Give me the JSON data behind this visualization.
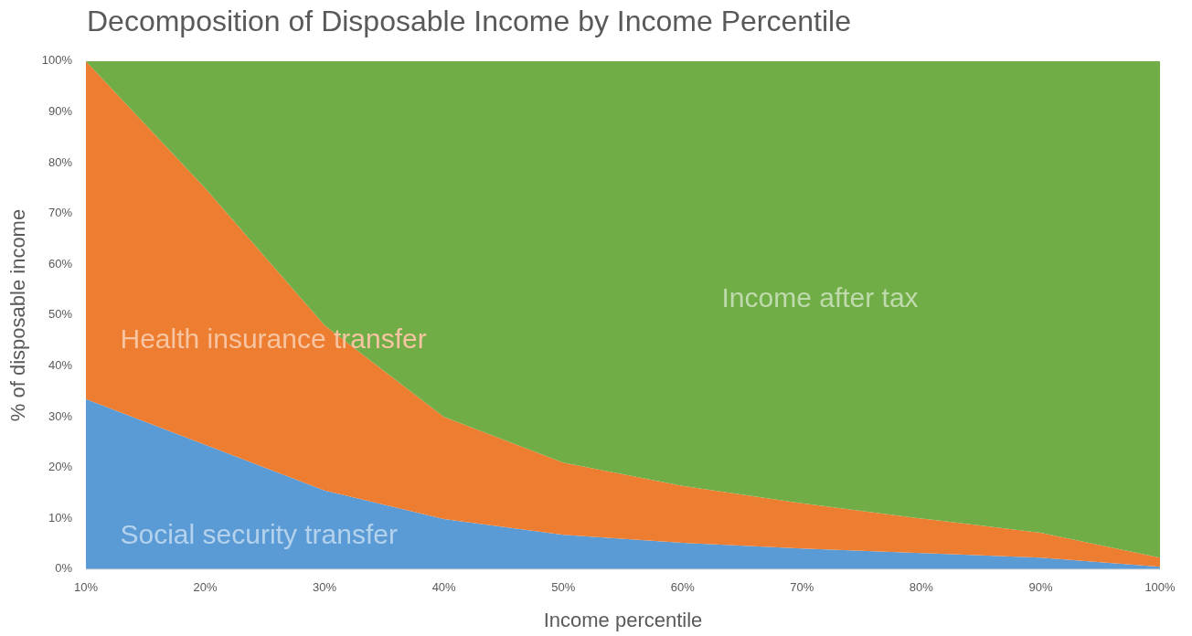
{
  "chart_data": {
    "type": "area",
    "title": "Decomposition of Disposable Income by Income Percentile",
    "xlabel": "Income percentile",
    "ylabel": "% of disposable income",
    "categories": [
      "10%",
      "20%",
      "30%",
      "40%",
      "50%",
      "60%",
      "70%",
      "80%",
      "90%",
      "100%"
    ],
    "stacked": true,
    "ylim": [
      0,
      100
    ],
    "yticks": [
      {
        "value": 0,
        "label": "0%"
      },
      {
        "value": 10,
        "label": "10%"
      },
      {
        "value": 20,
        "label": "20%"
      },
      {
        "value": 30,
        "label": "30%"
      },
      {
        "value": 40,
        "label": "40%"
      },
      {
        "value": 50,
        "label": "50%"
      },
      {
        "value": 60,
        "label": "60%"
      },
      {
        "value": 70,
        "label": "70%"
      },
      {
        "value": 80,
        "label": "80%"
      },
      {
        "value": 90,
        "label": "90%"
      },
      {
        "value": 100,
        "label": "100%"
      }
    ],
    "grid": false,
    "series": [
      {
        "name": "Social security transfer",
        "color": "#5b9bd5",
        "values": [
          33.5,
          24.5,
          15.5,
          9.9,
          6.8,
          5.2,
          4.1,
          3.2,
          2.3,
          0.5
        ]
      },
      {
        "name": "Health insurance transfer",
        "color": "#ed7d31",
        "values": [
          66.5,
          50.5,
          32.5,
          20.1,
          14.2,
          11.2,
          8.9,
          6.8,
          4.9,
          1.8
        ]
      },
      {
        "name": "Income after tax",
        "color": "#70ad47",
        "values": [
          0,
          25,
          52,
          70,
          79,
          83.6,
          87,
          90,
          92.8,
          97.7
        ]
      }
    ]
  }
}
